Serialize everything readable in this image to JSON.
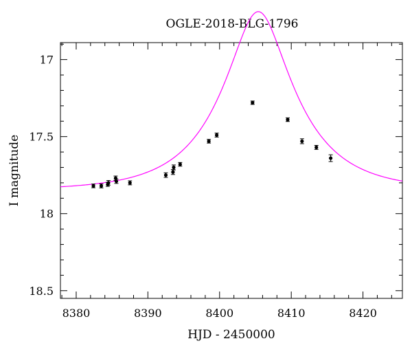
{
  "chart_data": {
    "type": "scatter",
    "title": "OGLE-2018-BLG-1796",
    "xlabel": "HJD - 2450000",
    "ylabel": "I magnitude",
    "xlim": [
      8377.8,
      8425.5
    ],
    "ylim": [
      18.55,
      16.89
    ],
    "y_inverted": true,
    "xticks": [
      8380,
      8390,
      8400,
      8410,
      8420
    ],
    "xtick_labels": [
      "8380",
      "8390",
      "8400",
      "8410",
      "8420"
    ],
    "yticks": [
      17,
      17.5,
      18,
      18.5
    ],
    "ytick_labels": [
      "17",
      "17.5",
      "18",
      "18.5"
    ],
    "x_minor_step": 2,
    "y_minor_step": 0.1,
    "grid": false,
    "series": [
      {
        "kind": "points",
        "color": "#000000",
        "points": [
          {
            "x": 8382.4,
            "y": 17.82,
            "err": 0.012
          },
          {
            "x": 8383.5,
            "y": 17.82,
            "err": 0.013
          },
          {
            "x": 8384.4,
            "y": 17.81,
            "err": 0.013
          },
          {
            "x": 8384.5,
            "y": 17.8,
            "err": 0.015
          },
          {
            "x": 8385.5,
            "y": 17.77,
            "err": 0.014
          },
          {
            "x": 8385.6,
            "y": 17.79,
            "err": 0.014
          },
          {
            "x": 8387.5,
            "y": 17.8,
            "err": 0.013
          },
          {
            "x": 8392.5,
            "y": 17.75,
            "err": 0.015
          },
          {
            "x": 8393.5,
            "y": 17.73,
            "err": 0.016
          },
          {
            "x": 8393.6,
            "y": 17.7,
            "err": 0.016
          },
          {
            "x": 8394.5,
            "y": 17.68,
            "err": 0.012
          },
          {
            "x": 8398.5,
            "y": 17.53,
            "err": 0.012
          },
          {
            "x": 8399.6,
            "y": 17.49,
            "err": 0.013
          },
          {
            "x": 8404.6,
            "y": 17.28,
            "err": 0.011
          },
          {
            "x": 8409.5,
            "y": 17.39,
            "err": 0.012
          },
          {
            "x": 8411.5,
            "y": 17.53,
            "err": 0.016
          },
          {
            "x": 8413.5,
            "y": 17.57,
            "err": 0.013
          },
          {
            "x": 8415.5,
            "y": 17.64,
            "err": 0.022
          }
        ]
      },
      {
        "kind": "model-curve",
        "color": "#ff00ff",
        "model": {
          "t0": 8405.4,
          "tE": 10.0,
          "u0": 0.36,
          "baseline": 17.849
        }
      }
    ]
  }
}
